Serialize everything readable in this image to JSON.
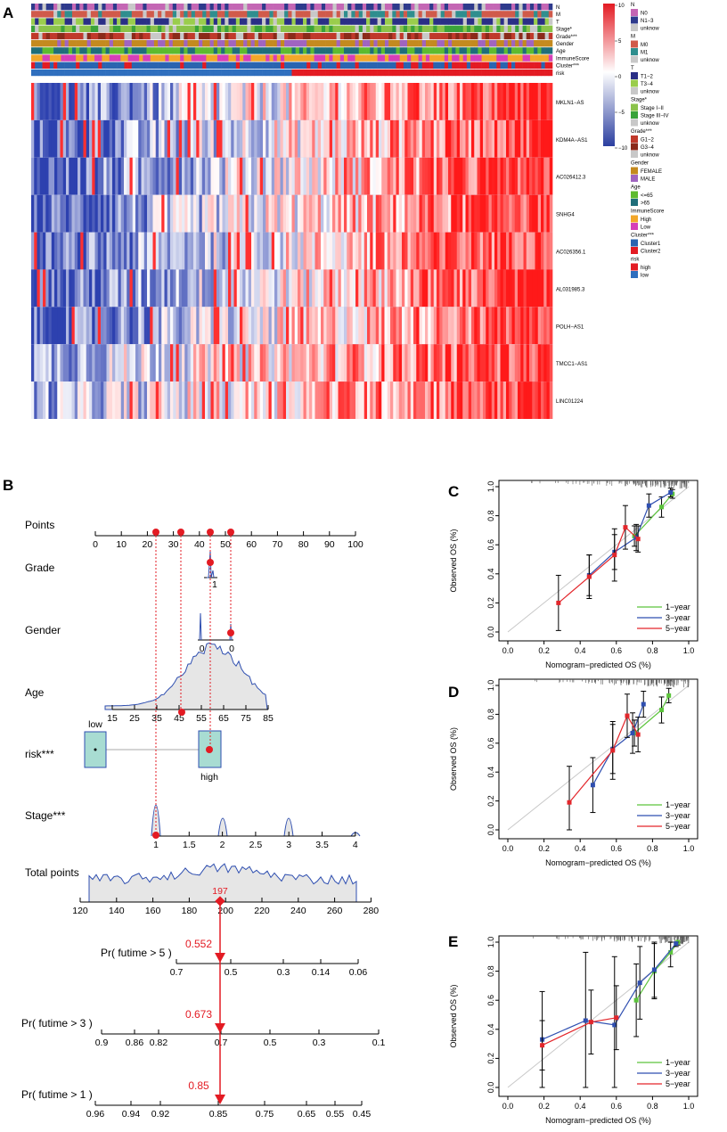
{
  "panel_labels": {
    "A": "A",
    "B": "B",
    "C": "C",
    "D": "D",
    "E": "E"
  },
  "heatmap": {
    "annotation_tracks": [
      "N",
      "M",
      "T",
      "Stage*",
      "Grade***",
      "Gender",
      "Age",
      "ImmuneScore",
      "Cluster***",
      "risk"
    ],
    "genes": [
      "MKLN1−AS",
      "KDM4A−AS1",
      "AC026412.3",
      "SNHG4",
      "AC026356.1",
      "AL031985.3",
      "POLH−AS1",
      "TMCC1−AS1",
      "LINC01224"
    ],
    "colorbar_ticks": [
      "10",
      "5",
      "0",
      "−5",
      "−10"
    ],
    "legend": [
      {
        "title": "N",
        "items": [
          {
            "label": "N0",
            "color": "#c466b4"
          },
          {
            "label": "N1−3",
            "color": "#2e3a8c"
          },
          {
            "label": "unknow",
            "color": "#c8c8c8"
          }
        ]
      },
      {
        "title": "M",
        "items": [
          {
            "label": "M0",
            "color": "#d05a4a"
          },
          {
            "label": "M1",
            "color": "#2f8e8e"
          },
          {
            "label": "unknow",
            "color": "#c8c8c8"
          }
        ]
      },
      {
        "title": "T",
        "items": [
          {
            "label": "T1−2",
            "color": "#2a2f86"
          },
          {
            "label": "T3−4",
            "color": "#9acd4c"
          },
          {
            "label": "unknow",
            "color": "#c8c8c8"
          }
        ]
      },
      {
        "title": "Stage*",
        "items": [
          {
            "label": "Stage I−II",
            "color": "#8bc34a"
          },
          {
            "label": "Stage III−IV",
            "color": "#3aa33a"
          },
          {
            "label": "unknow",
            "color": "#c8c8c8"
          }
        ]
      },
      {
        "title": "Grade***",
        "items": [
          {
            "label": "G1−2",
            "color": "#c0392b"
          },
          {
            "label": "G3−4",
            "color": "#8b2a1a"
          },
          {
            "label": "unknow",
            "color": "#c8c8c8"
          }
        ]
      },
      {
        "title": "Gender",
        "items": [
          {
            "label": "FEMALE",
            "color": "#c48a1f"
          },
          {
            "label": "MALE",
            "color": "#a064c0"
          }
        ]
      },
      {
        "title": "Age",
        "items": [
          {
            "label": "<=65",
            "color": "#5dbb2f"
          },
          {
            "label": ">65",
            "color": "#1f6e7a"
          }
        ]
      },
      {
        "title": "ImmuneScore",
        "items": [
          {
            "label": "High",
            "color": "#f2a72a"
          },
          {
            "label": "Low",
            "color": "#d63fb8"
          }
        ]
      },
      {
        "title": "Cluster***",
        "items": [
          {
            "label": "Cluster1",
            "color": "#2a64b0"
          },
          {
            "label": "Cluster2",
            "color": "#e31b23"
          }
        ]
      },
      {
        "title": "risk",
        "items": [
          {
            "label": "high",
            "color": "#e31b23"
          },
          {
            "label": "low",
            "color": "#2f6fbe"
          }
        ]
      }
    ]
  },
  "nomogram": {
    "rows": {
      "points": "Points",
      "grade": "Grade",
      "gender": "Gender",
      "age": "Age",
      "risk": "risk***",
      "stage": "Stage***",
      "total": "Total points"
    },
    "points_ticks": [
      "0",
      "10",
      "20",
      "30",
      "40",
      "50",
      "60",
      "70",
      "80",
      "90",
      "100"
    ],
    "grade_tick": "1",
    "gender_ticks": [
      "0.8",
      "0"
    ],
    "age_ticks": [
      "15",
      "25",
      "35",
      "45",
      "55",
      "65",
      "75",
      "85"
    ],
    "risk_labels": {
      "low": "low",
      "high": "high"
    },
    "stage_ticks": [
      "1",
      "1.5",
      "2",
      "2.5",
      "3",
      "3.5",
      "4"
    ],
    "total_ticks": [
      "120",
      "140",
      "160",
      "180",
      "200",
      "220",
      "240",
      "260",
      "280"
    ],
    "total_value": "197",
    "prob_rows": [
      {
        "label": "Pr( futime > 5 )",
        "value": "0.552",
        "ticks": [
          "0.7",
          "0.5",
          "0.3",
          "0.14",
          "0.06"
        ]
      },
      {
        "label": "Pr( futime > 3 )",
        "value": "0.673",
        "ticks": [
          "0.9",
          "0.86",
          "0.82",
          "0.7",
          "0.5",
          "0.3",
          "0.1"
        ]
      },
      {
        "label": "Pr( futime > 1 )",
        "value": "0.85",
        "ticks": [
          "0.96",
          "0.94",
          "0.92",
          "0.85",
          "0.75",
          "0.65",
          "0.55",
          "0.45"
        ]
      }
    ]
  },
  "calibration_text": {
    "xlabel": "Nomogram−predicted OS (%)",
    "ylabel": "Observed OS (%)",
    "ticks": [
      "0.0",
      "0.2",
      "0.4",
      "0.6",
      "0.8",
      "1.0"
    ],
    "legend": [
      "1−year",
      "3−year",
      "5−year"
    ]
  },
  "chart_data": [
    {
      "type": "line",
      "panel": "C",
      "title": "",
      "xlabel": "Nomogram−predicted OS (%)",
      "ylabel": "Observed OS (%)",
      "xlim": [
        0,
        1
      ],
      "ylim": [
        0,
        1
      ],
      "series": [
        {
          "name": "1−year",
          "color": "#5cc43c",
          "x": [
            0.7,
            0.85,
            0.91
          ],
          "y": [
            0.66,
            0.86,
            0.95
          ],
          "err": [
            0.07,
            0.07,
            0.03
          ]
        },
        {
          "name": "3−year",
          "color": "#2f4fb0",
          "x": [
            0.45,
            0.59,
            0.71,
            0.78,
            0.9
          ],
          "y": [
            0.39,
            0.55,
            0.65,
            0.87,
            0.96
          ],
          "err": [
            0.14,
            0.12,
            0.09,
            0.08,
            0.03
          ]
        },
        {
          "name": "5−year",
          "color": "#e3262b",
          "x": [
            0.28,
            0.45,
            0.59,
            0.65,
            0.72
          ],
          "y": [
            0.2,
            0.38,
            0.53,
            0.72,
            0.64
          ],
          "err": [
            0.19,
            0.15,
            0.18,
            0.15,
            0.09
          ]
        }
      ]
    },
    {
      "type": "line",
      "panel": "D",
      "title": "",
      "xlabel": "Nomogram−predicted OS (%)",
      "ylabel": "Observed OS (%)",
      "xlim": [
        0,
        1
      ],
      "ylim": [
        0,
        1
      ],
      "series": [
        {
          "name": "1−year",
          "color": "#5cc43c",
          "x": [
            0.7,
            0.85,
            0.89
          ],
          "y": [
            0.67,
            0.83,
            0.93
          ],
          "err": [
            0.09,
            0.09,
            0.05
          ]
        },
        {
          "name": "3−year",
          "color": "#2f4fb0",
          "x": [
            0.47,
            0.58,
            0.69,
            0.75
          ],
          "y": [
            0.31,
            0.56,
            0.67,
            0.87
          ],
          "err": [
            0.19,
            0.17,
            0.14,
            0.09
          ]
        },
        {
          "name": "5−year",
          "color": "#e3262b",
          "x": [
            0.34,
            0.58,
            0.66,
            0.72
          ],
          "y": [
            0.19,
            0.55,
            0.79,
            0.66
          ],
          "err": [
            0.25,
            0.2,
            0.15,
            0.12
          ]
        }
      ]
    },
    {
      "type": "line",
      "panel": "E",
      "title": "",
      "xlabel": "Nomogram−predicted OS (%)",
      "ylabel": "Observed OS (%)",
      "xlim": [
        0,
        1
      ],
      "ylim": [
        0,
        1
      ],
      "series": [
        {
          "name": "1−year",
          "color": "#5cc43c",
          "x": [
            0.71,
            0.81,
            0.9,
            0.94
          ],
          "y": [
            0.6,
            0.8,
            0.93,
            1.0
          ],
          "err": [
            0.25,
            0.19,
            0.1,
            0.02
          ]
        },
        {
          "name": "3−year",
          "color": "#2f4fb0",
          "x": [
            0.19,
            0.43,
            0.59,
            0.73,
            0.81,
            0.93
          ],
          "y": [
            0.33,
            0.46,
            0.43,
            0.72,
            0.81,
            0.99
          ],
          "err": [
            0.33,
            0.47,
            0.47,
            0.25,
            0.19,
            0.02
          ]
        },
        {
          "name": "5−year",
          "color": "#e3262b",
          "x": [
            0.19,
            0.46,
            0.6
          ],
          "y": [
            0.29,
            0.45,
            0.48
          ],
          "err": [
            0.17,
            0.22,
            0.22
          ]
        }
      ]
    }
  ]
}
